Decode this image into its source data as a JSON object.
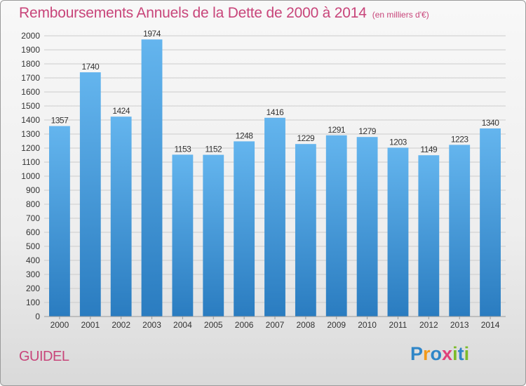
{
  "header": {
    "title": "Remboursements Annuels de la Dette de 2000 à 2014",
    "subtitle": "(en milliers d'€)"
  },
  "footer": {
    "city": "GUIDEL",
    "brand": "Proxiti"
  },
  "colors": {
    "accent_text": "#c8457a",
    "bar_top": "#64b5ee",
    "bar_bottom": "#2a7cc0",
    "grid": "#cccccc",
    "axis_text": "#333333"
  },
  "chart_data": {
    "type": "bar",
    "title": "Remboursements Annuels de la Dette de 2000 à 2014",
    "subtitle": "(en milliers d'€)",
    "xlabel": "",
    "ylabel": "",
    "categories": [
      "2000",
      "2001",
      "2002",
      "2003",
      "2004",
      "2005",
      "2006",
      "2007",
      "2008",
      "2009",
      "2010",
      "2011",
      "2012",
      "2013",
      "2014"
    ],
    "values": [
      1357,
      1740,
      1424,
      1974,
      1153,
      1152,
      1248,
      1416,
      1229,
      1291,
      1279,
      1203,
      1149,
      1223,
      1340
    ],
    "ylim": [
      0,
      2000
    ],
    "ytick_step": 100,
    "grid": true,
    "data_labels": true
  }
}
